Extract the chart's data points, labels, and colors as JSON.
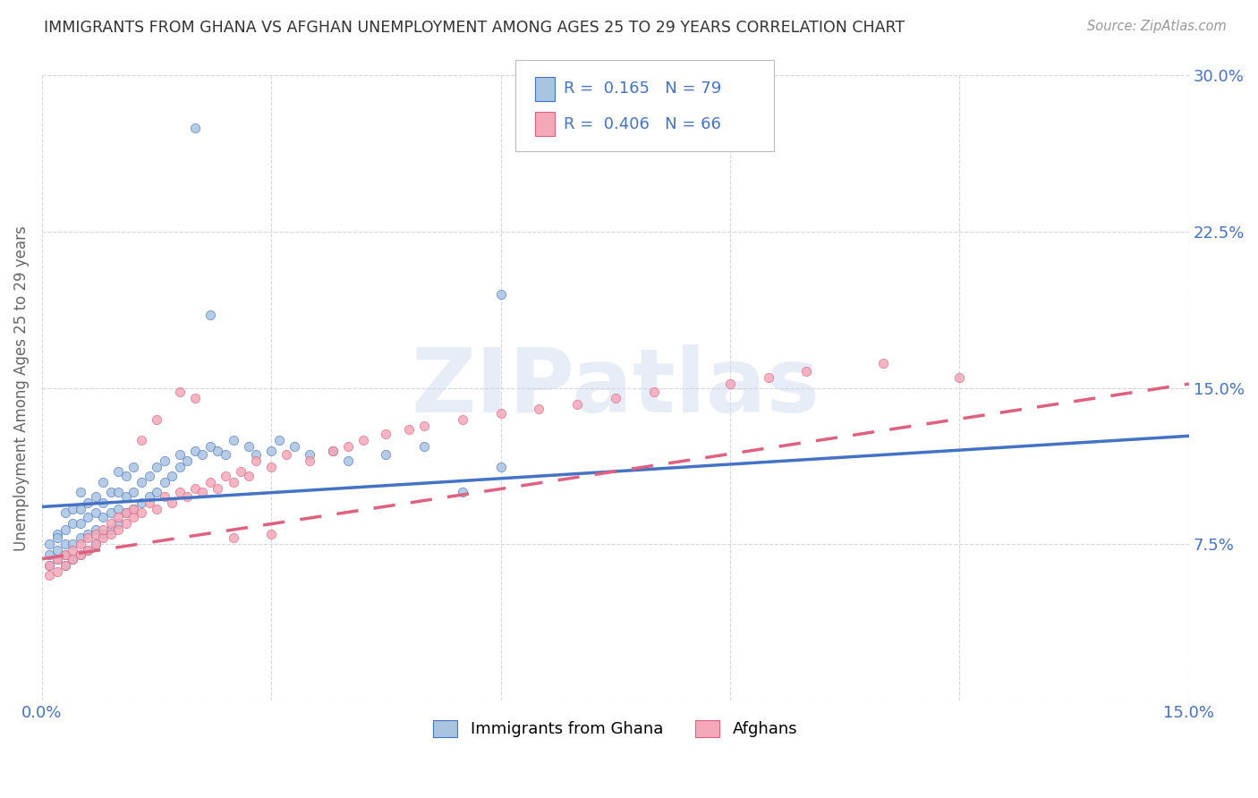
{
  "title": "IMMIGRANTS FROM GHANA VS AFGHAN UNEMPLOYMENT AMONG AGES 25 TO 29 YEARS CORRELATION CHART",
  "source": "Source: ZipAtlas.com",
  "ylabel": "Unemployment Among Ages 25 to 29 years",
  "xlim": [
    0.0,
    0.15
  ],
  "ylim": [
    0.0,
    0.3
  ],
  "xticks": [
    0.0,
    0.03,
    0.06,
    0.09,
    0.12,
    0.15
  ],
  "yticks": [
    0.0,
    0.075,
    0.15,
    0.225,
    0.3
  ],
  "legend1_label": "Immigrants from Ghana",
  "legend2_label": "Afghans",
  "R1": 0.165,
  "N1": 79,
  "R2": 0.406,
  "N2": 66,
  "color1": "#a8c4e0",
  "color2": "#f4a8b8",
  "line1_color": "#4472c4",
  "line2_color": "#e06080",
  "watermark": "ZIPatlas",
  "background_color": "#ffffff",
  "ghana_line_x0": 0.0,
  "ghana_line_y0": 0.093,
  "ghana_line_x1": 0.15,
  "ghana_line_y1": 0.127,
  "afghan_line_x0": 0.0,
  "afghan_line_y0": 0.068,
  "afghan_line_x1": 0.15,
  "afghan_line_y1": 0.152,
  "ghana_scatter_x": [
    0.001,
    0.001,
    0.001,
    0.002,
    0.002,
    0.002,
    0.002,
    0.003,
    0.003,
    0.003,
    0.003,
    0.003,
    0.004,
    0.004,
    0.004,
    0.004,
    0.005,
    0.005,
    0.005,
    0.005,
    0.005,
    0.006,
    0.006,
    0.006,
    0.006,
    0.007,
    0.007,
    0.007,
    0.007,
    0.008,
    0.008,
    0.008,
    0.008,
    0.009,
    0.009,
    0.009,
    0.01,
    0.01,
    0.01,
    0.01,
    0.011,
    0.011,
    0.011,
    0.012,
    0.012,
    0.012,
    0.013,
    0.013,
    0.014,
    0.014,
    0.015,
    0.015,
    0.016,
    0.016,
    0.017,
    0.018,
    0.018,
    0.019,
    0.02,
    0.021,
    0.022,
    0.023,
    0.024,
    0.025,
    0.027,
    0.028,
    0.03,
    0.031,
    0.033,
    0.035,
    0.038,
    0.04,
    0.045,
    0.05,
    0.055,
    0.06,
    0.02,
    0.022,
    0.06
  ],
  "ghana_scatter_y": [
    0.065,
    0.07,
    0.075,
    0.068,
    0.072,
    0.08,
    0.078,
    0.065,
    0.07,
    0.075,
    0.082,
    0.09,
    0.068,
    0.075,
    0.085,
    0.092,
    0.07,
    0.078,
    0.085,
    0.092,
    0.1,
    0.072,
    0.08,
    0.088,
    0.095,
    0.075,
    0.082,
    0.09,
    0.098,
    0.08,
    0.088,
    0.095,
    0.105,
    0.082,
    0.09,
    0.1,
    0.085,
    0.092,
    0.1,
    0.11,
    0.09,
    0.098,
    0.108,
    0.092,
    0.1,
    0.112,
    0.095,
    0.105,
    0.098,
    0.108,
    0.1,
    0.112,
    0.105,
    0.115,
    0.108,
    0.112,
    0.118,
    0.115,
    0.12,
    0.118,
    0.122,
    0.12,
    0.118,
    0.125,
    0.122,
    0.118,
    0.12,
    0.125,
    0.122,
    0.118,
    0.12,
    0.115,
    0.118,
    0.122,
    0.1,
    0.112,
    0.275,
    0.185,
    0.195
  ],
  "afghan_scatter_x": [
    0.001,
    0.001,
    0.002,
    0.002,
    0.003,
    0.003,
    0.004,
    0.004,
    0.005,
    0.005,
    0.006,
    0.006,
    0.007,
    0.007,
    0.008,
    0.008,
    0.009,
    0.009,
    0.01,
    0.01,
    0.011,
    0.011,
    0.012,
    0.012,
    0.013,
    0.014,
    0.015,
    0.016,
    0.017,
    0.018,
    0.019,
    0.02,
    0.021,
    0.022,
    0.023,
    0.024,
    0.025,
    0.026,
    0.027,
    0.028,
    0.03,
    0.032,
    0.035,
    0.038,
    0.04,
    0.042,
    0.045,
    0.048,
    0.05,
    0.055,
    0.06,
    0.065,
    0.07,
    0.075,
    0.08,
    0.09,
    0.095,
    0.1,
    0.11,
    0.12,
    0.013,
    0.015,
    0.018,
    0.02,
    0.025,
    0.03
  ],
  "afghan_scatter_y": [
    0.06,
    0.065,
    0.062,
    0.068,
    0.065,
    0.07,
    0.068,
    0.072,
    0.07,
    0.075,
    0.072,
    0.078,
    0.075,
    0.08,
    0.078,
    0.082,
    0.08,
    0.085,
    0.082,
    0.088,
    0.085,
    0.09,
    0.088,
    0.092,
    0.09,
    0.095,
    0.092,
    0.098,
    0.095,
    0.1,
    0.098,
    0.102,
    0.1,
    0.105,
    0.102,
    0.108,
    0.105,
    0.11,
    0.108,
    0.115,
    0.112,
    0.118,
    0.115,
    0.12,
    0.122,
    0.125,
    0.128,
    0.13,
    0.132,
    0.135,
    0.138,
    0.14,
    0.142,
    0.145,
    0.148,
    0.152,
    0.155,
    0.158,
    0.162,
    0.155,
    0.125,
    0.135,
    0.148,
    0.145,
    0.078,
    0.08
  ]
}
